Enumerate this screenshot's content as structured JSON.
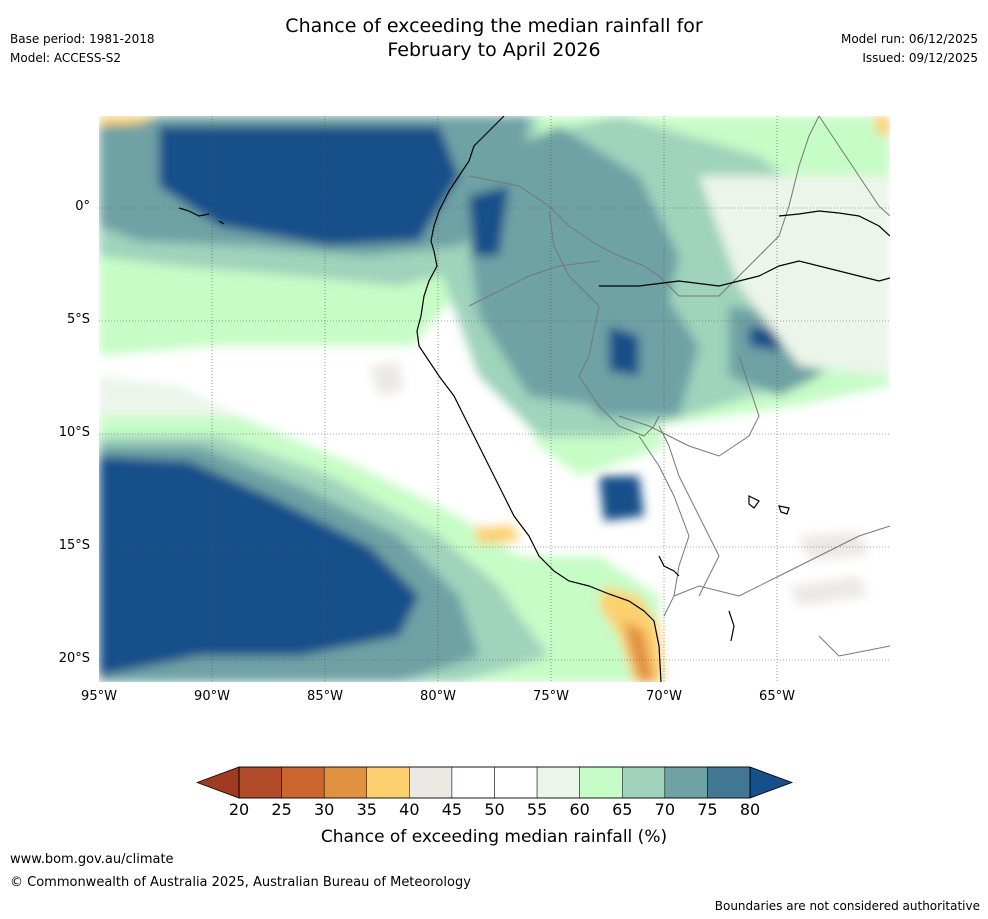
{
  "header": {
    "title_line1": "Chance of exceeding the median rainfall for",
    "title_line2": "February to April 2026",
    "base_period": "Base period: 1981-2018",
    "model": "Model: ACCESS-S2",
    "model_run": "Model run: 06/12/2025",
    "issued": "Issued: 09/12/2025"
  },
  "map": {
    "lat_labels": [
      "0°",
      "5°S",
      "10°S",
      "15°S",
      "20°S"
    ],
    "lon_labels": [
      "95°W",
      "90°W",
      "85°W",
      "80°W",
      "75°W",
      "70°W",
      "65°W"
    ]
  },
  "legend": {
    "ticks": [
      "20",
      "25",
      "30",
      "35",
      "40",
      "45",
      "50",
      "55",
      "60",
      "65",
      "70",
      "75",
      "80"
    ],
    "colors": [
      "#b04a27",
      "#cc6630",
      "#e09240",
      "#fdd070",
      "#ece9e4",
      "#ffffff",
      "#ffffff",
      "#ebf5ea",
      "#c6fcc6",
      "#9fd3bb",
      "#6ea2a4",
      "#427894"
    ],
    "under_color": "#9e3b20",
    "over_color": "#15508a",
    "label": "Chance of exceeding median rainfall (%)"
  },
  "footer": {
    "website": "www.bom.gov.au/climate",
    "copyright": "© Commonwealth of Australia 2025, Australian Bureau of Meteorology",
    "disclaimer": "Boundaries are not considered authoritative"
  }
}
